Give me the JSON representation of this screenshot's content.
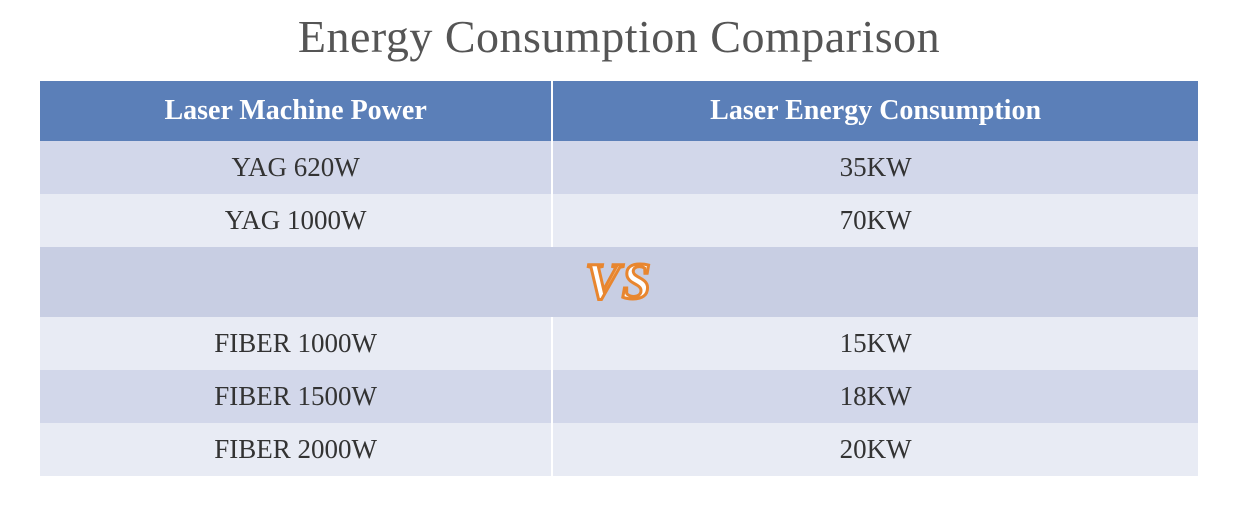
{
  "title": "Energy Consumption Comparison",
  "columns": [
    "Laser Machine Power",
    "Laser Energy Consumption"
  ],
  "yag_rows": [
    {
      "power": "YAG 620W",
      "consumption": "35KW"
    },
    {
      "power": "YAG 1000W",
      "consumption": "70KW"
    }
  ],
  "vs_label": "VS",
  "fiber_rows": [
    {
      "power": "FIBER 1000W",
      "consumption": "15KW"
    },
    {
      "power": "FIBER 1500W",
      "consumption": "18KW"
    },
    {
      "power": "FIBER 2000W",
      "consumption": "20KW"
    }
  ],
  "colors": {
    "header_bg": "#5b7fb8",
    "header_text": "#ffffff",
    "row_light": "#d2d7ea",
    "row_lighter": "#e8ebf4",
    "vs_row_bg": "#c8cee3",
    "vs_text_fill": "#ffffff",
    "vs_text_stroke": "#e8862f",
    "title_color": "#555555",
    "cell_text": "#333333",
    "background": "#ffffff"
  },
  "fonts": {
    "title_size": 46,
    "header_size": 28,
    "cell_size": 27,
    "vs_size": 52,
    "family": "Georgia, 'Times New Roman', serif"
  }
}
